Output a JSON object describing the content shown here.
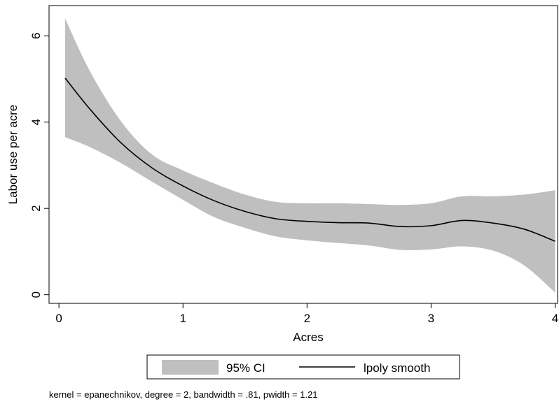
{
  "chart_data": {
    "type": "area",
    "xlabel": "Acres",
    "ylabel": "Labor use per acre",
    "xlim": [
      -0.08,
      4.02
    ],
    "ylim": [
      -0.2,
      6.7
    ],
    "xticks": [
      0,
      1,
      2,
      3,
      4
    ],
    "xtick_labels": [
      "0",
      "1",
      "2",
      "3",
      "4"
    ],
    "yticks": [
      0,
      2,
      4,
      6
    ],
    "ytick_labels": [
      "0",
      "2",
      "4",
      "6"
    ],
    "grid": false,
    "legend_position": "bottom",
    "note": "kernel = epanechnikov, degree = 2, bandwidth = .81, pwidth = 1.21",
    "colors": {
      "band": "#bfbfbf",
      "line": "#000000"
    },
    "series": [
      {
        "name": "95% CI",
        "kind": "band",
        "x": [
          0.05,
          0.25,
          0.5,
          0.75,
          1.0,
          1.25,
          1.5,
          1.75,
          2.0,
          2.25,
          2.5,
          2.75,
          3.0,
          3.25,
          3.5,
          3.75,
          4.0
        ],
        "lower": [
          3.65,
          3.42,
          3.05,
          2.62,
          2.2,
          1.8,
          1.55,
          1.35,
          1.26,
          1.2,
          1.14,
          1.04,
          1.05,
          1.12,
          1.02,
          0.68,
          0.05
        ],
        "upper": [
          6.4,
          5.18,
          4.02,
          3.25,
          2.88,
          2.58,
          2.32,
          2.15,
          2.12,
          2.12,
          2.1,
          2.08,
          2.12,
          2.28,
          2.28,
          2.32,
          2.42
        ]
      },
      {
        "name": "lpoly smooth",
        "kind": "line",
        "x": [
          0.05,
          0.25,
          0.5,
          0.75,
          1.0,
          1.25,
          1.5,
          1.75,
          2.0,
          2.25,
          2.5,
          2.75,
          3.0,
          3.25,
          3.5,
          3.75,
          4.0
        ],
        "y": [
          5.02,
          4.3,
          3.52,
          2.94,
          2.52,
          2.18,
          1.93,
          1.76,
          1.7,
          1.67,
          1.66,
          1.58,
          1.6,
          1.72,
          1.66,
          1.52,
          1.24
        ]
      }
    ]
  }
}
